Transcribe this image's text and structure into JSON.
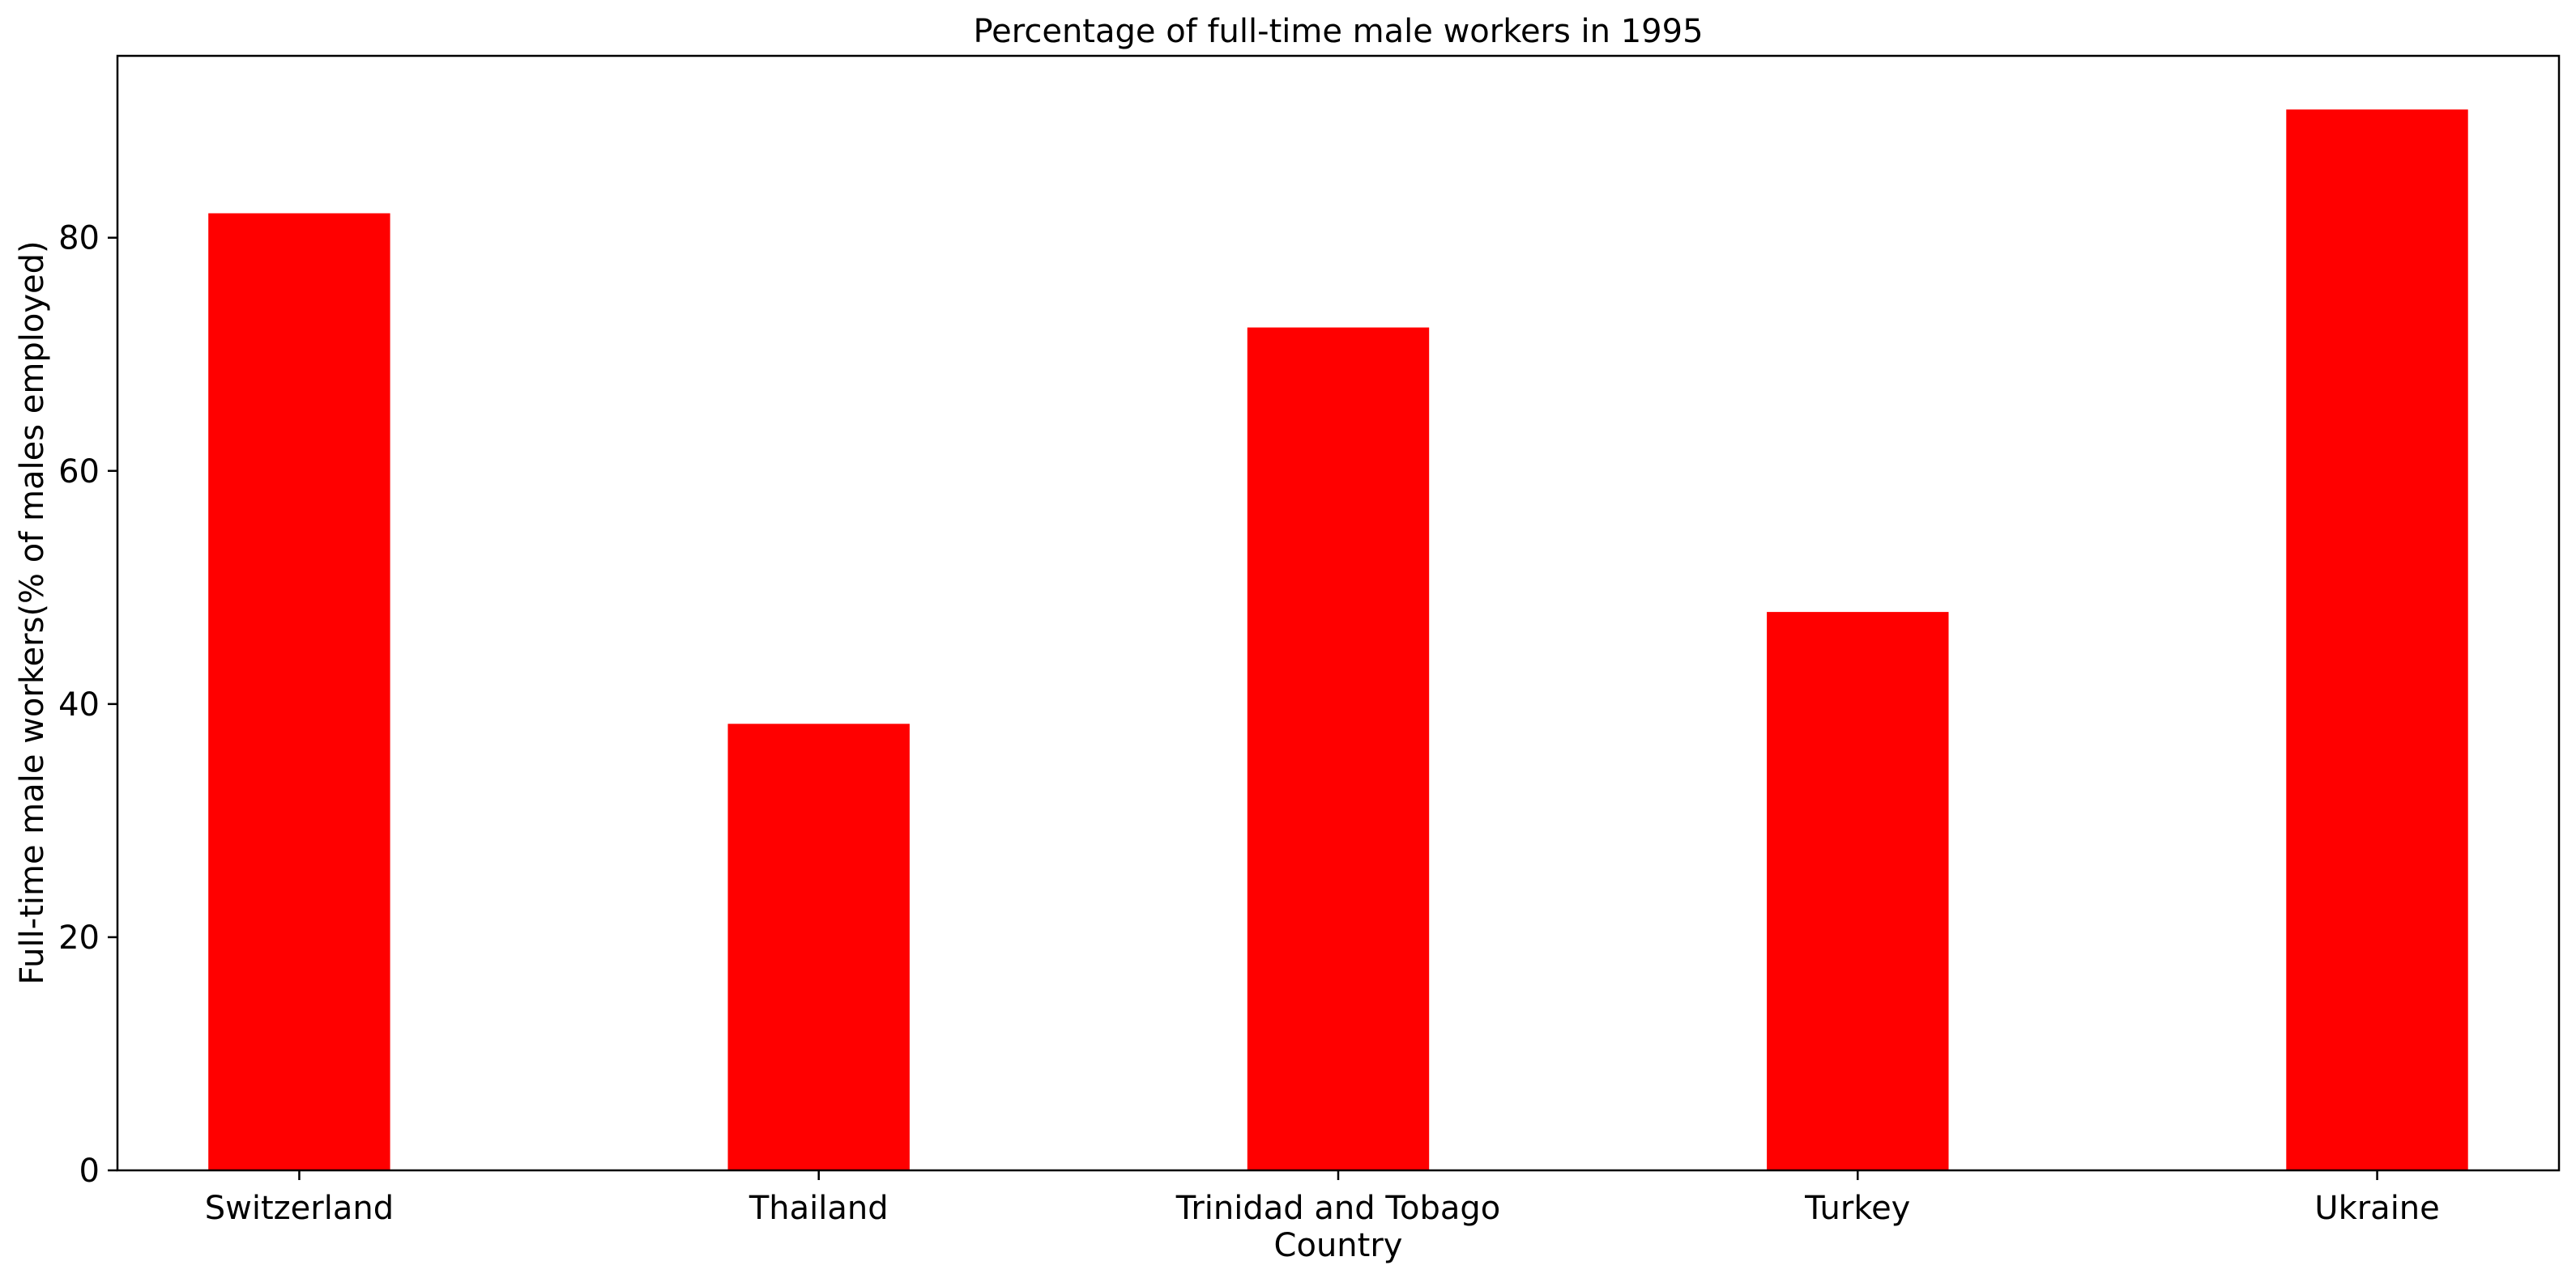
{
  "chart_data": {
    "type": "bar",
    "title": "Percentage of full-time male workers in 1995",
    "xlabel": "Country",
    "ylabel": "Full-time male workers(% of males employed)",
    "categories": [
      "Switzerland",
      "Thailand",
      "Trinidad and Tobago",
      "Turkey",
      "Ukraine"
    ],
    "values": [
      82.1,
      38.3,
      72.3,
      47.9,
      91.0
    ],
    "ylim": [
      0,
      95.6
    ],
    "yticks": [
      0,
      20,
      40,
      60,
      80
    ],
    "ytick_labels": [
      "0",
      "20",
      "40",
      "60",
      "80"
    ],
    "grid": false,
    "legend": "none",
    "bar_color": "#ff0000"
  }
}
